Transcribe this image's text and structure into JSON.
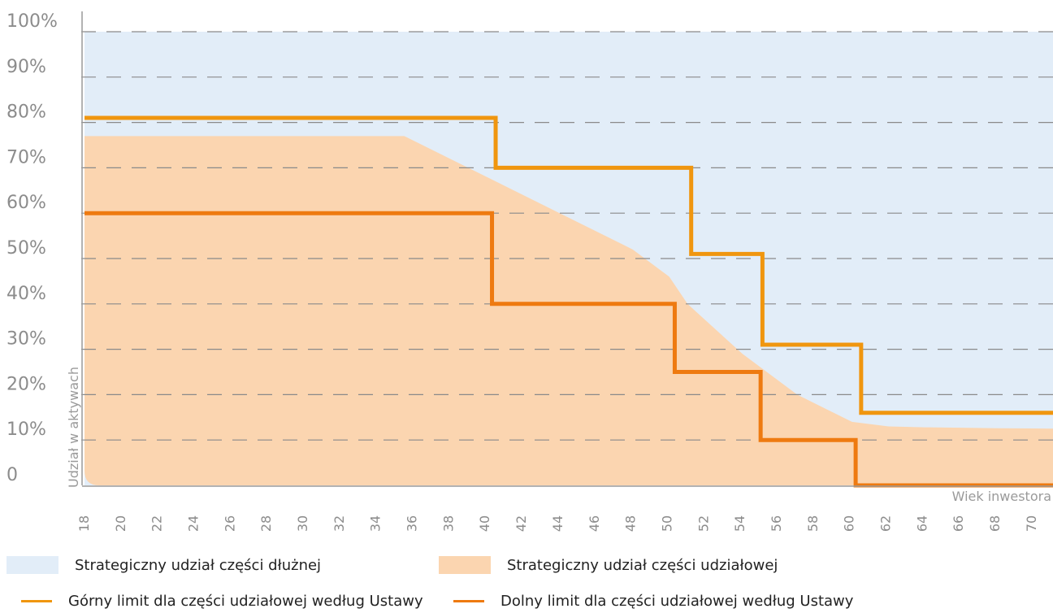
{
  "chart_data": {
    "type": "area",
    "xlabel": "Wiek inwestora",
    "ylabel": "Udział w aktywach",
    "x_ticks": [
      18,
      20,
      22,
      24,
      26,
      28,
      30,
      32,
      34,
      36,
      38,
      40,
      42,
      44,
      46,
      48,
      50,
      52,
      54,
      56,
      58,
      60,
      62,
      64,
      66,
      68,
      70
    ],
    "y_ticks": [
      "0",
      "10%",
      "20%",
      "30%",
      "40%",
      "50%",
      "60%",
      "70%",
      "80%",
      "90%",
      "100%"
    ],
    "xlim": [
      18,
      71
    ],
    "ylim": [
      0,
      100
    ],
    "grid": "horizontal dashed",
    "series": [
      {
        "name": "Strategiczny udział części dłużnej",
        "kind": "area",
        "color": "#e2edf8",
        "x": [
          18,
          71
        ],
        "y_top": [
          100,
          100
        ]
      },
      {
        "name": "Strategiczny udział części udziałowej",
        "kind": "area",
        "color": "#fbd5b0",
        "x": [
          18,
          35.5,
          38,
          40,
          44,
          48,
          50,
          51,
          54,
          57,
          60,
          62,
          64,
          66,
          68,
          71
        ],
        "y": [
          77,
          77,
          72,
          68,
          60,
          52,
          46,
          40,
          29,
          20,
          14,
          13,
          12.8,
          12.7,
          12.6,
          12.5
        ]
      },
      {
        "name": "Górny limit dla części udziałowej według Ustawy",
        "kind": "step",
        "color": "#f0960f",
        "x": [
          18,
          40.5,
          40.5,
          51.2,
          51.2,
          55.1,
          55.1,
          60.5,
          60.5,
          71
        ],
        "y": [
          81,
          81,
          70,
          70,
          51,
          51,
          31,
          31,
          16,
          16
        ]
      },
      {
        "name": "Dolny limit dla części udziałowej według Ustawy",
        "kind": "step",
        "color": "#ee7a10",
        "x": [
          18,
          40.3,
          40.3,
          50.3,
          50.3,
          55,
          55,
          60.2,
          60.2,
          71
        ],
        "y": [
          60,
          60,
          40,
          40,
          25,
          25,
          10,
          10,
          0,
          0
        ]
      }
    ]
  },
  "legend": {
    "debt_label": "Strategiczny udział części dłużnej",
    "equity_label": "Strategiczny udział części udziałowej",
    "upper_label": "Górny limit dla części udziałowej według Ustawy",
    "lower_label": "Dolny limit dla części udziałowej według Ustawy",
    "debt_color": "#e2edf8",
    "equity_color": "#fbd5b0",
    "upper_color": "#f0960f",
    "lower_color": "#ee7a10"
  }
}
